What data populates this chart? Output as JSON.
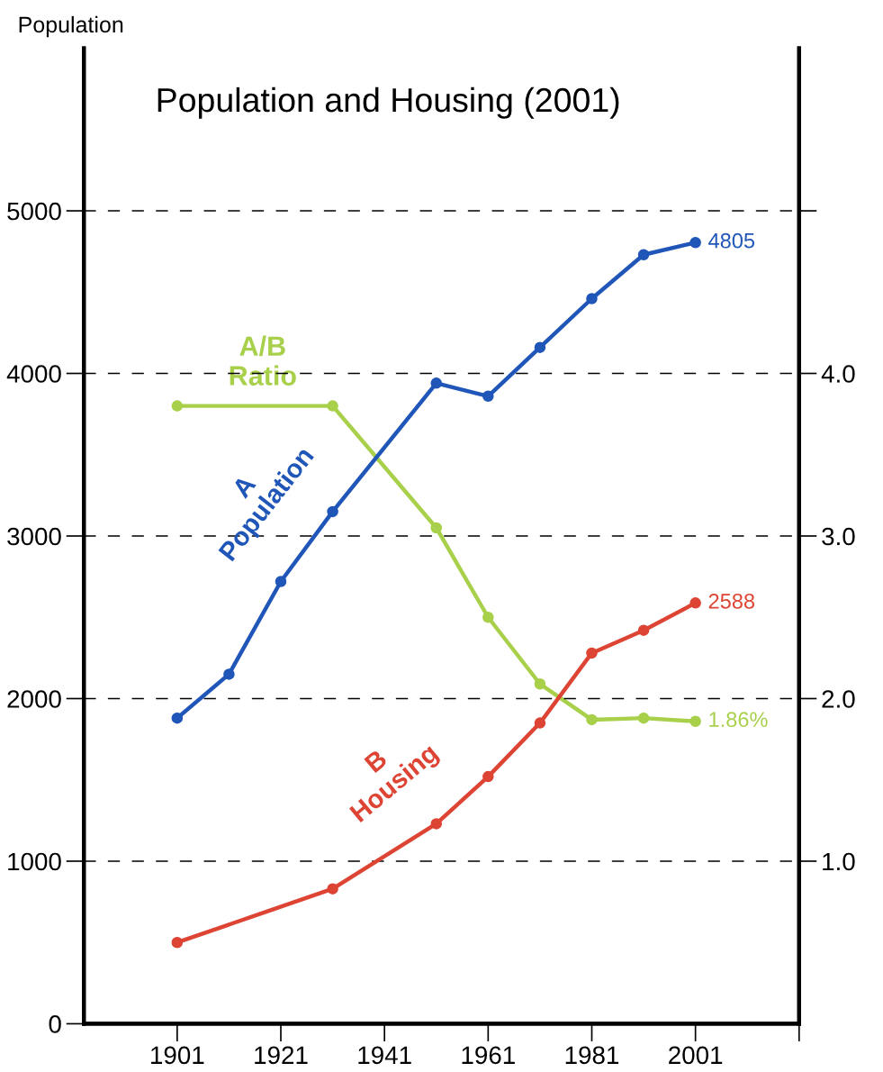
{
  "chart_data": {
    "type": "line",
    "title": "Population and Housing (2001)",
    "ylabel": "Population",
    "x": [
      1901,
      1911,
      1921,
      1931,
      1951,
      1961,
      1971,
      1981,
      1991,
      2001
    ],
    "xlim": [
      1883,
      2021
    ],
    "xticks": [
      1901,
      1921,
      1941,
      1961,
      1981,
      2001,
      {
        "value": 2021,
        "label": null
      }
    ],
    "ylim": [
      0,
      6000
    ],
    "yticks": [
      0,
      1000,
      2000,
      3000,
      4000,
      5000
    ],
    "y2lim": [
      0,
      6
    ],
    "y2ticks": [
      {
        "value": 1,
        "label": "1.0"
      },
      {
        "value": 2,
        "label": "2.0"
      },
      {
        "value": 3,
        "label": "3.0"
      },
      {
        "value": 4,
        "label": "4.0"
      },
      {
        "value": 5,
        "label": null
      }
    ],
    "grid": "y",
    "marker": "circle",
    "line_style": "solid",
    "series": [
      {
        "name": "A\nPopulation",
        "color": "#1f56b8",
        "values": [
          1880,
          2150,
          2720,
          3150,
          3940,
          3860,
          4160,
          4460,
          4730,
          4805
        ],
        "value_labels": [
          null,
          null,
          null,
          null,
          null,
          null,
          null,
          null,
          null,
          "4805"
        ]
      },
      {
        "name": "B\nHousing",
        "color": "#dd4433",
        "values": [
          500,
          null,
          null,
          830,
          1230,
          1520,
          1850,
          2280,
          2420,
          2588
        ],
        "value_labels": [
          null,
          null,
          null,
          null,
          null,
          null,
          null,
          null,
          null,
          "2588"
        ]
      },
      {
        "name": "A/B\nRatio",
        "color": "#a8d04a",
        "axis": "y2",
        "x": [
          1901,
          1931,
          1951,
          1961,
          1971,
          1981,
          1991,
          2001
        ],
        "values": [
          3.8,
          3.8,
          3.05,
          2.5,
          2.09,
          1.87,
          1.88,
          1.86
        ],
        "value_labels": [
          null,
          null,
          null,
          null,
          null,
          null,
          null,
          "1.86%"
        ]
      }
    ]
  }
}
